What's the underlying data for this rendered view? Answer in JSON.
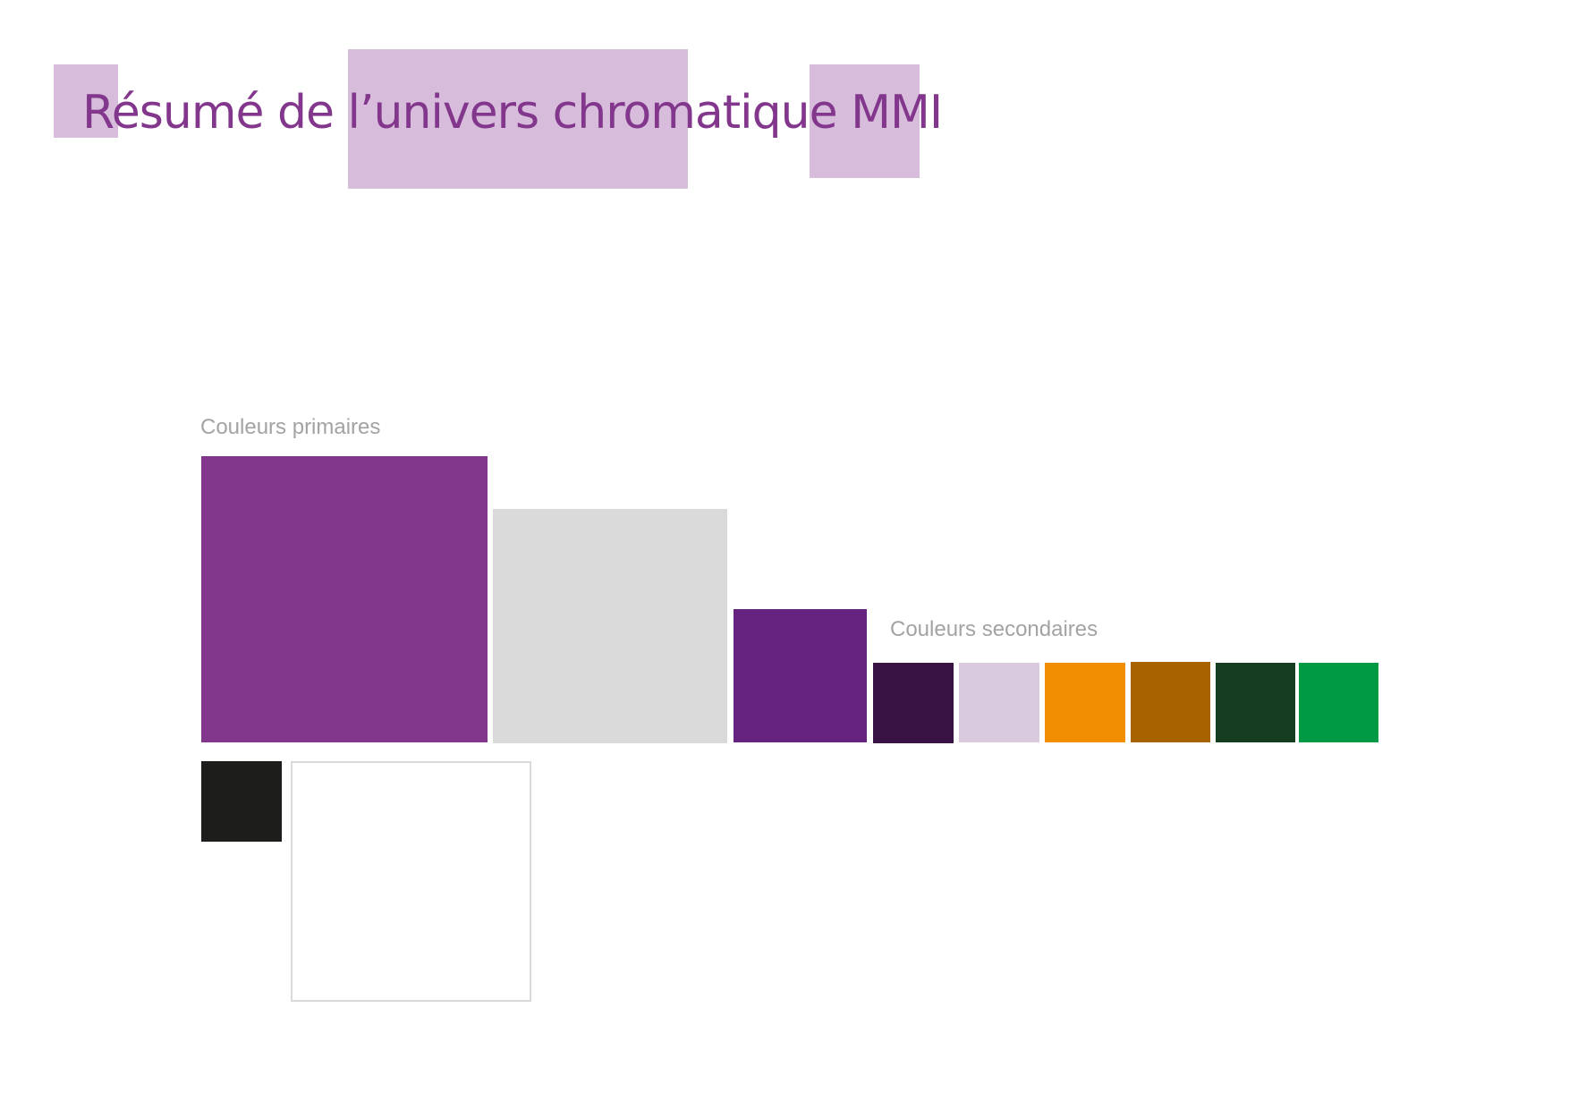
{
  "title": "Résumé de l’univers chromatique MMI",
  "primary": {
    "label": "Couleurs primaires",
    "swatches": [
      {
        "color": "#82368c"
      },
      {
        "color": "#dadada"
      },
      {
        "color": "#65227e"
      },
      {
        "color": "#1d1d1b"
      },
      {
        "color": "#ffffff"
      }
    ]
  },
  "secondary": {
    "label": "Couleurs secondaires",
    "swatches": [
      {
        "color": "#371242"
      },
      {
        "color": "#dacade"
      },
      {
        "color": "#f18e00"
      },
      {
        "color": "#a76300"
      },
      {
        "color": "#143c1f"
      },
      {
        "color": "#009a45"
      }
    ]
  },
  "decor": {
    "highlight_color": "#d7bcdb",
    "title_color": "#82368c",
    "label_color": "#a3a3a3"
  }
}
